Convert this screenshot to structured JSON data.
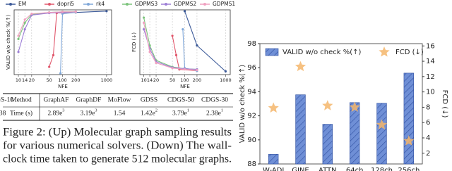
{
  "chart_data": [
    {
      "type": "line",
      "xlabel": "NFE",
      "ylabel": "VALID w/o check %(↑)",
      "xscale": "log",
      "xlim": [
        8,
        1300
      ],
      "ylim": [
        0,
        100
      ],
      "xticks": [
        10,
        14,
        20,
        50,
        100,
        200,
        1000
      ],
      "grid": true,
      "series": [
        {
          "name": "EM",
          "color": "#3b5998",
          "x": [
            100,
            200,
            1000
          ],
          "values": [
            95,
            96,
            98
          ]
        },
        {
          "name": "dopri5",
          "color": "#e0556a",
          "x": [
            50,
            62,
            74,
            200
          ],
          "values": [
            12,
            30,
            95,
            97
          ]
        },
        {
          "name": "rk4",
          "color": "#7fa7d9",
          "x": [
            90,
            100,
            200
          ],
          "values": [
            2,
            94,
            96
          ]
        },
        {
          "name": "GDPMS3",
          "color": "#7cc47c",
          "x": [
            10,
            14,
            20,
            50,
            100,
            200
          ],
          "values": [
            55,
            80,
            93,
            96,
            97,
            97
          ]
        },
        {
          "name": "GDPMS2",
          "color": "#9d7fd6",
          "x": [
            10,
            14,
            20,
            50,
            100,
            200
          ],
          "values": [
            35,
            70,
            92,
            95,
            96,
            97
          ]
        },
        {
          "name": "GDPMS1",
          "color": "#f0a0c0",
          "x": [
            10,
            14,
            20,
            50,
            100,
            200
          ],
          "values": [
            60,
            85,
            94,
            96,
            97,
            97
          ]
        }
      ]
    },
    {
      "type": "line",
      "xlabel": "NFE",
      "ylabel": "FCD (↓)",
      "xscale": "log",
      "xlim": [
        8,
        1300
      ],
      "ylim": [
        0,
        100
      ],
      "xticks": [
        10,
        14,
        20,
        50,
        100,
        200,
        1000
      ],
      "grid": true,
      "series": [
        {
          "x": [
            100,
            200,
            1000
          ],
          "values": [
            98,
            45,
            5
          ]
        },
        {
          "x": [
            50,
            62,
            74,
            200
          ],
          "values": [
            60,
            30,
            8,
            6
          ]
        },
        {
          "x": [
            90,
            100,
            200
          ],
          "values": [
            70,
            10,
            6
          ]
        },
        {
          "x": [
            10,
            14,
            20,
            50,
            100,
            200
          ],
          "values": [
            88,
            45,
            22,
            12,
            9,
            8
          ]
        },
        {
          "x": [
            10,
            14,
            20,
            50,
            100,
            200
          ],
          "values": [
            70,
            40,
            20,
            11,
            9,
            8
          ]
        },
        {
          "x": [
            10,
            14,
            20,
            50,
            100,
            200
          ],
          "values": [
            80,
            35,
            18,
            10,
            8,
            7
          ]
        }
      ]
    },
    {
      "type": "bar",
      "ylabel": "VALID w/o check %(↑)",
      "y2label": "FCD (↓)",
      "categories": [
        "W-ADJ",
        "GINE",
        "ATTN",
        "64ch",
        "128ch",
        "256ch"
      ],
      "ylim": [
        88,
        98
      ],
      "yticks": [
        88,
        90,
        92,
        94,
        96,
        98
      ],
      "y2lim": [
        0.6,
        16.3
      ],
      "y2ticks": [
        2,
        4,
        6,
        8,
        10,
        12,
        14,
        16
      ],
      "series": [
        {
          "name": "VALID w/o check %(↑)",
          "color": "#6f8fd6",
          "values": [
            88.8,
            93.75,
            91.3,
            93.1,
            93.05,
            95.55
          ]
        },
        {
          "name": "FCD (↓)",
          "color": "#f5b66b",
          "axis": "y2",
          "marker": "star",
          "values": [
            7.9,
            13.3,
            8.2,
            8.0,
            5.7,
            3.6
          ]
        }
      ]
    }
  ],
  "table": {
    "header": [
      "Method",
      "GraphAF",
      "GraphDF",
      "MoFlow",
      "GDSS",
      "CDGS-50",
      "CDGS-30",
      "CDGS-10"
    ],
    "rows": [
      [
        "Time (s)",
        {
          "main": "2.89e",
          "sup": "3"
        },
        {
          "main": "3.19e",
          "sup": "3"
        },
        "1.54",
        {
          "main": "1.42e",
          "sup": "2"
        },
        {
          "main": "3.79e",
          "sup": "1"
        },
        {
          "main": "2.38e",
          "sup": "1"
        },
        "8.38"
      ]
    ]
  },
  "caption": {
    "lines": [
      "Figure 2: (Up) Molecular graph sampling results",
      "for various numerical solvers. (Down) The wall-",
      "clock time taken to generate 512 molecular graphs."
    ]
  }
}
